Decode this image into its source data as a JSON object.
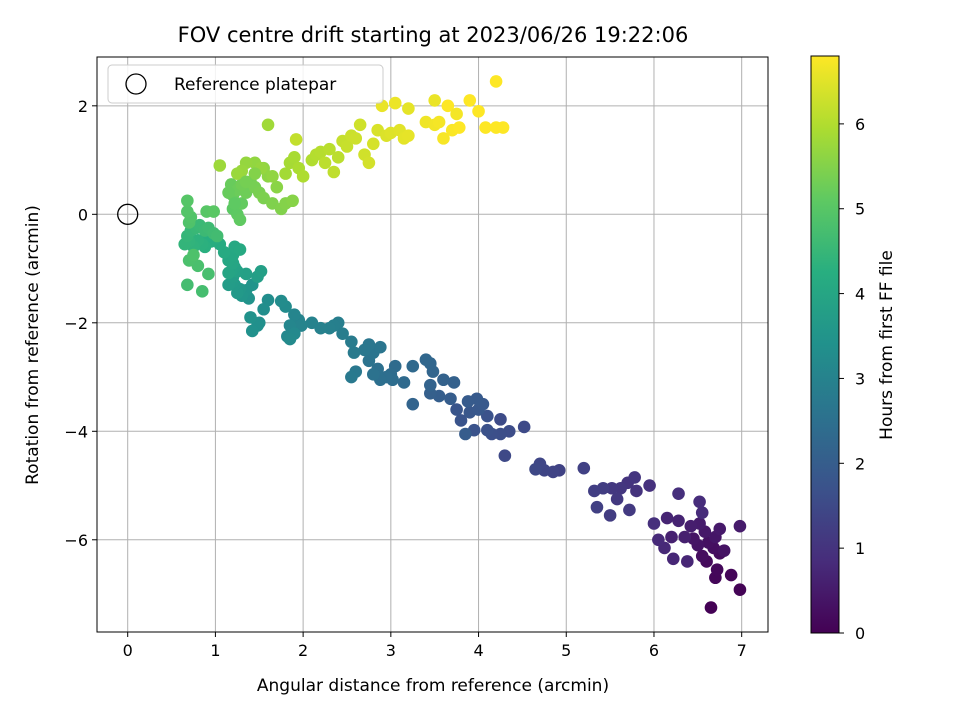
{
  "chart_data": {
    "type": "scatter",
    "title": "FOV centre drift starting at 2023/06/26 19:22:06",
    "xlabel": "Angular distance from reference (arcmin)",
    "ylabel": "Rotation from reference (arcmin)",
    "xlim": [
      -0.35,
      7.3
    ],
    "ylim": [
      -7.7,
      2.9
    ],
    "xticks": [
      "0",
      "1",
      "2",
      "3",
      "4",
      "5",
      "6",
      "7"
    ],
    "yticks": [
      "2",
      "0",
      "−2",
      "−4",
      "−6"
    ],
    "grid": true,
    "legend": {
      "position": "top-left",
      "label": "Reference platepar"
    },
    "reference_point": {
      "x": 0,
      "y": 0
    },
    "colorbar": {
      "label": "Hours from first FF file",
      "colormap": "viridis",
      "range": [
        0,
        6.8
      ],
      "ticks": [
        "0",
        "1",
        "2",
        "3",
        "4",
        "5",
        "6"
      ]
    },
    "points": [
      [
        6.65,
        -7.25,
        0.02
      ],
      [
        6.98,
        -6.92,
        0.05
      ],
      [
        6.88,
        -6.65,
        0.08
      ],
      [
        6.7,
        -6.7,
        0.11
      ],
      [
        6.72,
        -6.55,
        0.14
      ],
      [
        6.6,
        -6.4,
        0.17
      ],
      [
        6.75,
        -6.25,
        0.2
      ],
      [
        6.55,
        -6.3,
        0.23
      ],
      [
        6.68,
        -6.15,
        0.26
      ],
      [
        6.62,
        -6.05,
        0.29
      ],
      [
        6.8,
        -6.2,
        0.32
      ],
      [
        6.5,
        -6.1,
        0.35
      ],
      [
        6.45,
        -5.98,
        0.38
      ],
      [
        6.7,
        -5.95,
        0.41
      ],
      [
        6.58,
        -5.85,
        0.44
      ],
      [
        6.75,
        -5.8,
        0.47
      ],
      [
        6.98,
        -5.75,
        0.5
      ],
      [
        6.52,
        -5.7,
        0.53
      ],
      [
        6.42,
        -5.75,
        0.56
      ],
      [
        6.35,
        -5.95,
        0.59
      ],
      [
        6.2,
        -5.95,
        0.62
      ],
      [
        6.28,
        -5.65,
        0.65
      ],
      [
        6.15,
        -5.6,
        0.68
      ],
      [
        6.38,
        -6.4,
        0.71
      ],
      [
        6.22,
        -6.35,
        0.74
      ],
      [
        6.12,
        -6.15,
        0.77
      ],
      [
        6.05,
        -6.0,
        0.8
      ],
      [
        6.55,
        -5.5,
        0.83
      ],
      [
        6.52,
        -5.3,
        0.86
      ],
      [
        6.28,
        -5.15,
        0.89
      ],
      [
        6.0,
        -5.7,
        0.92
      ],
      [
        5.95,
        -5.0,
        0.95
      ],
      [
        5.8,
        -5.1,
        0.98
      ],
      [
        5.7,
        -4.95,
        1.01
      ],
      [
        5.78,
        -4.85,
        1.04
      ],
      [
        5.62,
        -5.05,
        1.07
      ],
      [
        5.52,
        -5.05,
        1.1
      ],
      [
        5.58,
        -5.25,
        1.13
      ],
      [
        5.72,
        -5.45,
        1.16
      ],
      [
        5.5,
        -5.55,
        1.19
      ],
      [
        5.42,
        -5.05,
        1.22
      ],
      [
        5.32,
        -5.1,
        1.25
      ],
      [
        5.35,
        -5.4,
        1.28
      ],
      [
        5.2,
        -4.68,
        1.31
      ],
      [
        4.92,
        -4.72,
        1.34
      ],
      [
        4.85,
        -4.75,
        1.37
      ],
      [
        4.75,
        -4.72,
        1.4
      ],
      [
        4.7,
        -4.6,
        1.43
      ],
      [
        4.65,
        -4.7,
        1.46
      ],
      [
        4.3,
        -4.45,
        1.49
      ],
      [
        4.52,
        -3.92,
        1.52
      ],
      [
        4.25,
        -3.78,
        1.55
      ],
      [
        4.35,
        -4.0,
        1.58
      ],
      [
        4.25,
        -4.05,
        1.61
      ],
      [
        4.15,
        -4.05,
        1.64
      ],
      [
        4.1,
        -3.98,
        1.67
      ],
      [
        4.1,
        -3.72,
        1.7
      ],
      [
        3.95,
        -3.98,
        1.73
      ],
      [
        3.8,
        -3.8,
        1.76
      ],
      [
        3.75,
        -3.6,
        1.79
      ],
      [
        3.9,
        -3.65,
        1.82
      ],
      [
        4.0,
        -3.6,
        1.85
      ],
      [
        4.05,
        -3.5,
        1.88
      ],
      [
        3.98,
        -3.4,
        1.91
      ],
      [
        3.88,
        -3.45,
        1.94
      ],
      [
        3.85,
        -4.05,
        1.97
      ],
      [
        3.68,
        -3.4,
        2.0
      ],
      [
        3.55,
        -3.35,
        2.03
      ],
      [
        3.45,
        -3.3,
        2.06
      ],
      [
        3.72,
        -3.1,
        2.09
      ],
      [
        3.6,
        -3.05,
        2.12
      ],
      [
        3.45,
        -3.15,
        2.15
      ],
      [
        3.25,
        -3.5,
        2.18
      ],
      [
        3.48,
        -2.9,
        2.21
      ],
      [
        3.45,
        -2.75,
        2.24
      ],
      [
        3.4,
        -2.68,
        2.27
      ],
      [
        3.25,
        -2.8,
        2.3
      ],
      [
        3.15,
        -3.1,
        2.33
      ],
      [
        3.05,
        -2.8,
        2.36
      ],
      [
        3.0,
        -2.95,
        2.39
      ],
      [
        3.02,
        -3.05,
        2.42
      ],
      [
        2.95,
        -3.0,
        2.45
      ],
      [
        2.88,
        -3.05,
        2.48
      ],
      [
        2.85,
        -2.85,
        2.51
      ],
      [
        2.8,
        -2.95,
        2.54
      ],
      [
        2.75,
        -2.7,
        2.57
      ],
      [
        2.8,
        -2.55,
        2.6
      ],
      [
        2.88,
        -2.45,
        2.63
      ],
      [
        2.75,
        -2.4,
        2.66
      ],
      [
        2.7,
        -2.5,
        2.69
      ],
      [
        2.6,
        -2.9,
        2.72
      ],
      [
        2.55,
        -3.0,
        2.75
      ],
      [
        2.58,
        -2.55,
        2.78
      ],
      [
        2.55,
        -2.35,
        2.81
      ],
      [
        2.45,
        -2.2,
        2.84
      ],
      [
        2.4,
        -2.0,
        2.87
      ],
      [
        2.35,
        -2.05,
        2.9
      ],
      [
        2.3,
        -2.1,
        2.93
      ],
      [
        2.2,
        -2.1,
        2.96
      ],
      [
        2.1,
        -2.0,
        2.99
      ],
      [
        1.95,
        -1.95,
        3.02
      ],
      [
        1.98,
        -2.05,
        3.05
      ],
      [
        1.9,
        -1.85,
        3.08
      ],
      [
        1.85,
        -2.05,
        3.11
      ],
      [
        1.82,
        -2.25,
        3.14
      ],
      [
        1.9,
        -2.2,
        3.17
      ],
      [
        1.85,
        -2.3,
        3.2
      ],
      [
        1.8,
        -1.7,
        3.23
      ],
      [
        1.75,
        -1.6,
        3.26
      ],
      [
        1.6,
        -1.58,
        3.29
      ],
      [
        1.55,
        -1.75,
        3.32
      ],
      [
        1.5,
        -2.0,
        3.35
      ],
      [
        1.48,
        -2.05,
        3.38
      ],
      [
        1.42,
        -2.15,
        3.41
      ],
      [
        1.4,
        -1.9,
        3.44
      ],
      [
        1.38,
        -1.55,
        3.47
      ],
      [
        1.42,
        -1.3,
        3.5
      ],
      [
        1.35,
        -1.4,
        3.53
      ],
      [
        1.3,
        -1.5,
        3.56
      ],
      [
        1.28,
        -1.38,
        3.59
      ],
      [
        1.25,
        -1.45,
        3.62
      ],
      [
        1.22,
        -1.3,
        3.65
      ],
      [
        1.2,
        -1.25,
        3.68
      ],
      [
        1.15,
        -1.3,
        3.71
      ],
      [
        1.2,
        -1.15,
        3.74
      ],
      [
        1.48,
        -1.15,
        3.77
      ],
      [
        1.52,
        -1.05,
        3.8
      ],
      [
        1.35,
        -1.1,
        3.83
      ],
      [
        1.25,
        -1.05,
        3.86
      ],
      [
        1.22,
        -0.98,
        3.89
      ],
      [
        1.18,
        -1.05,
        3.92
      ],
      [
        1.15,
        -1.08,
        3.95
      ],
      [
        1.2,
        -0.9,
        3.98
      ],
      [
        1.15,
        -0.85,
        4.01
      ],
      [
        1.2,
        -0.75,
        4.04
      ],
      [
        1.22,
        -0.6,
        4.07
      ],
      [
        1.28,
        -0.65,
        4.1
      ],
      [
        1.1,
        -0.7,
        4.13
      ],
      [
        1.05,
        -0.55,
        4.16
      ],
      [
        1.0,
        -0.45,
        4.19
      ],
      [
        0.95,
        -0.5,
        4.22
      ],
      [
        0.9,
        -0.4,
        4.25
      ],
      [
        0.88,
        -0.6,
        4.28
      ],
      [
        0.85,
        -0.55,
        4.31
      ],
      [
        0.8,
        -0.48,
        4.34
      ],
      [
        0.75,
        -0.6,
        4.37
      ],
      [
        0.7,
        -0.5,
        4.4
      ],
      [
        0.65,
        -0.55,
        4.43
      ],
      [
        0.68,
        -0.4,
        4.46
      ],
      [
        0.72,
        -0.3,
        4.49
      ],
      [
        0.78,
        -0.25,
        4.52
      ],
      [
        0.82,
        -0.2,
        4.55
      ],
      [
        0.88,
        -0.3,
        4.58
      ],
      [
        0.92,
        -0.25,
        4.61
      ],
      [
        0.98,
        -0.35,
        4.64
      ],
      [
        1.02,
        -0.4,
        4.67
      ],
      [
        0.68,
        -1.3,
        4.7
      ],
      [
        0.85,
        -1.42,
        4.73
      ],
      [
        0.92,
        -1.1,
        4.76
      ],
      [
        0.8,
        -0.95,
        4.79
      ],
      [
        0.7,
        -0.85,
        4.82
      ],
      [
        0.75,
        -0.75,
        4.85
      ],
      [
        0.7,
        -0.15,
        4.88
      ],
      [
        0.72,
        -0.05,
        4.91
      ],
      [
        0.68,
        0.05,
        4.94
      ],
      [
        0.68,
        0.25,
        4.97
      ],
      [
        0.9,
        0.05,
        5.0
      ],
      [
        0.98,
        0.05,
        5.03
      ],
      [
        1.2,
        0.1,
        5.06
      ],
      [
        1.25,
        0.0,
        5.09
      ],
      [
        1.28,
        -0.1,
        5.12
      ],
      [
        1.3,
        0.2,
        5.15
      ],
      [
        1.2,
        0.35,
        5.18
      ],
      [
        1.18,
        0.55,
        5.21
      ],
      [
        1.25,
        0.45,
        5.24
      ],
      [
        1.35,
        0.4,
        5.27
      ],
      [
        1.3,
        0.55,
        5.3
      ],
      [
        1.4,
        0.6,
        5.33
      ],
      [
        1.45,
        0.5,
        5.36
      ],
      [
        1.5,
        0.4,
        5.39
      ],
      [
        1.55,
        0.3,
        5.42
      ],
      [
        1.65,
        0.2,
        5.45
      ],
      [
        1.75,
        0.1,
        5.48
      ],
      [
        1.8,
        0.2,
        5.51
      ],
      [
        1.88,
        0.25,
        5.54
      ],
      [
        1.7,
        0.5,
        5.57
      ],
      [
        1.6,
        0.7,
        5.6
      ],
      [
        1.55,
        0.85,
        5.63
      ],
      [
        1.45,
        0.95,
        5.66
      ],
      [
        1.35,
        0.95,
        5.69
      ],
      [
        1.3,
        0.8,
        5.72
      ],
      [
        1.25,
        0.75,
        5.75
      ],
      [
        1.05,
        0.9,
        5.78
      ],
      [
        1.6,
        1.65,
        5.81
      ],
      [
        1.8,
        0.75,
        5.84
      ],
      [
        1.85,
        0.95,
        5.87
      ],
      [
        1.9,
        1.05,
        5.9
      ],
      [
        1.95,
        0.85,
        5.93
      ],
      [
        2.0,
        0.7,
        5.96
      ],
      [
        2.1,
        1.0,
        5.99
      ],
      [
        2.15,
        1.1,
        6.02
      ],
      [
        2.2,
        1.15,
        6.05
      ],
      [
        2.3,
        1.2,
        6.08
      ],
      [
        2.25,
        0.95,
        6.11
      ],
      [
        2.35,
        0.78,
        6.14
      ],
      [
        1.92,
        1.38,
        6.17
      ],
      [
        2.45,
        1.35,
        6.2
      ],
      [
        2.5,
        1.25,
        6.23
      ],
      [
        2.55,
        1.45,
        6.26
      ],
      [
        2.6,
        1.4,
        6.29
      ],
      [
        2.7,
        1.1,
        6.32
      ],
      [
        2.75,
        0.95,
        6.35
      ],
      [
        2.8,
        1.3,
        6.38
      ],
      [
        2.85,
        1.55,
        6.41
      ],
      [
        2.95,
        1.45,
        6.44
      ],
      [
        3.0,
        1.5,
        6.47
      ],
      [
        3.1,
        1.55,
        6.5
      ],
      [
        3.15,
        1.4,
        6.53
      ],
      [
        3.2,
        1.45,
        6.56
      ],
      [
        2.9,
        2.0,
        6.59
      ],
      [
        3.05,
        2.05,
        6.62
      ],
      [
        3.4,
        1.7,
        6.65
      ],
      [
        3.5,
        1.65,
        6.68
      ],
      [
        3.55,
        1.7,
        6.71
      ],
      [
        3.6,
        1.4,
        6.74
      ],
      [
        3.7,
        1.55,
        6.77
      ],
      [
        3.78,
        1.6,
        6.8
      ],
      [
        3.65,
        2.0,
        6.83
      ],
      [
        3.9,
        2.1,
        6.86
      ],
      [
        4.0,
        1.9,
        6.89
      ],
      [
        4.08,
        1.6,
        6.92
      ],
      [
        4.2,
        1.6,
        6.95
      ],
      [
        4.28,
        1.6,
        6.98
      ],
      [
        4.2,
        2.45,
        7.0
      ],
      [
        3.75,
        1.85,
        6.7
      ],
      [
        3.5,
        2.1,
        6.6
      ],
      [
        3.2,
        1.95,
        6.55
      ],
      [
        2.65,
        1.65,
        6.3
      ],
      [
        2.4,
        1.05,
        6.1
      ],
      [
        1.52,
        0.85,
        5.7
      ],
      [
        1.65,
        0.7,
        5.65
      ],
      [
        1.45,
        0.75,
        5.5
      ],
      [
        1.35,
        0.6,
        5.35
      ],
      [
        1.15,
        0.4,
        5.2
      ],
      [
        1.22,
        0.2,
        5.1
      ]
    ]
  }
}
